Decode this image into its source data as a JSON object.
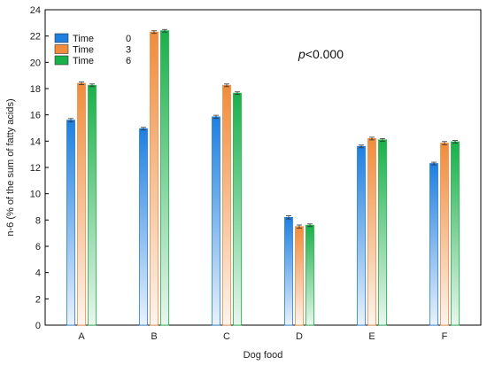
{
  "chart_data": {
    "type": "bar",
    "title": "",
    "xlabel": "Dog food",
    "ylabel": "n-6 (% of the sum of fatty acids)",
    "ylim": [
      0,
      24
    ],
    "yticks": [
      0,
      2,
      4,
      6,
      8,
      10,
      12,
      14,
      16,
      18,
      20,
      22,
      24
    ],
    "grid": false,
    "legend": {
      "placement": "top-left",
      "header": "Time",
      "entries": [
        "0",
        "3",
        "6"
      ]
    },
    "annotation": {
      "prefix": "p",
      "text": "<0.000"
    },
    "categories": [
      "A",
      "B",
      "C",
      "D",
      "E",
      "F"
    ],
    "series": [
      {
        "name": "0",
        "color": "#1e7fe0",
        "values": [
          15.6,
          14.95,
          15.85,
          8.2,
          13.6,
          12.3
        ],
        "errors": [
          0.12,
          0.1,
          0.12,
          0.12,
          0.1,
          0.1
        ]
      },
      {
        "name": "3",
        "color": "#f08c3c",
        "values": [
          18.4,
          22.3,
          18.25,
          7.5,
          14.2,
          13.85
        ],
        "errors": [
          0.1,
          0.1,
          0.1,
          0.12,
          0.1,
          0.12
        ]
      },
      {
        "name": "6",
        "color": "#1ab04a",
        "values": [
          18.25,
          22.4,
          17.65,
          7.6,
          14.1,
          13.95
        ],
        "errors": [
          0.1,
          0.1,
          0.1,
          0.1,
          0.1,
          0.1
        ]
      }
    ]
  }
}
